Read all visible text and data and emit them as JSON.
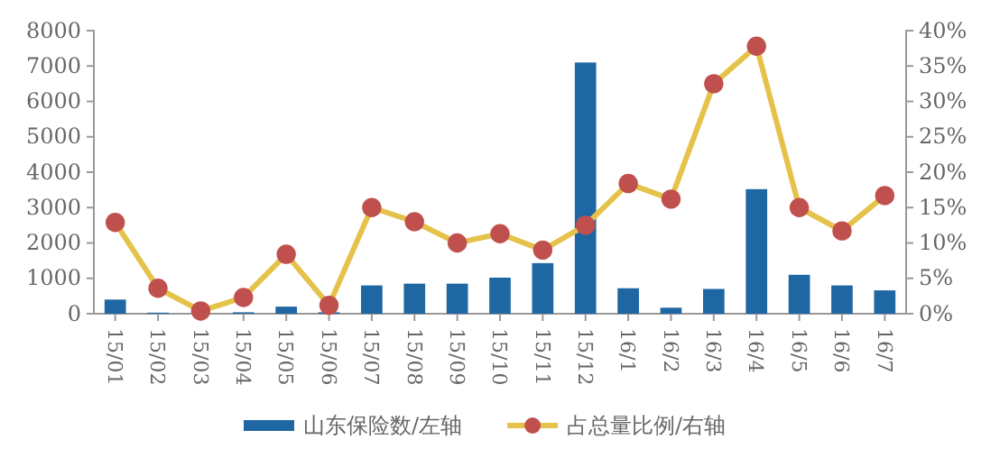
{
  "chart_data": {
    "type": "bar",
    "categories": [
      "15/01",
      "15/02",
      "15/03",
      "15/04",
      "15/05",
      "15/06",
      "15/07",
      "15/08",
      "15/09",
      "15/10",
      "15/11",
      "15/12",
      "16/1",
      "16/2",
      "16/3",
      "16/4",
      "16/5",
      "16/6",
      "16/7"
    ],
    "series": [
      {
        "name": "山东保险数/左轴",
        "color": "#1f67a3",
        "values": [
          400,
          30,
          null,
          40,
          200,
          40,
          800,
          850,
          850,
          1020,
          1430,
          7100,
          720,
          170,
          700,
          3520,
          1100,
          800,
          660
        ]
      },
      {
        "name": "占总量比例/右轴",
        "type": "line",
        "axis": "y2",
        "color": "#e5c24a",
        "colors": [
          "#c0504d",
          "#c0504d",
          "#c0504d",
          "#c0504d",
          "#c0504d",
          "#c0504d",
          "#c0504d",
          "#c0504d",
          "#c0504d",
          "#c0504d",
          "#c0504d",
          "#c0504d",
          "#c0504d",
          "#c0504d",
          "#c0504d",
          "#c0504d",
          "#c0504d",
          "#c0504d",
          "#c0504d"
        ],
        "values": [
          12.9,
          3.6,
          0.4,
          2.3,
          8.4,
          1.2,
          15.0,
          13.0,
          10.0,
          11.3,
          9.0,
          12.5,
          18.4,
          16.2,
          32.5,
          37.8,
          15.0,
          11.7,
          16.7
        ]
      }
    ],
    "ylim": [
      0,
      8000
    ],
    "yticks": [
      0,
      1000,
      2000,
      3000,
      4000,
      5000,
      6000,
      7000,
      8000
    ],
    "y2lim": [
      0,
      40
    ],
    "y2ticks": [
      {
        "value": 0,
        "label": "0%"
      },
      {
        "value": 5,
        "label": "5%"
      },
      {
        "value": 10,
        "label": "10%"
      },
      {
        "value": 15,
        "label": "15%"
      },
      {
        "value": 20,
        "label": "20%"
      },
      {
        "value": 25,
        "label": "25%"
      },
      {
        "value": 30,
        "label": "30%"
      },
      {
        "value": 35,
        "label": "35%"
      },
      {
        "value": 40,
        "label": "40%"
      }
    ],
    "legend": "bottom",
    "marker": "circle",
    "grid": false
  }
}
